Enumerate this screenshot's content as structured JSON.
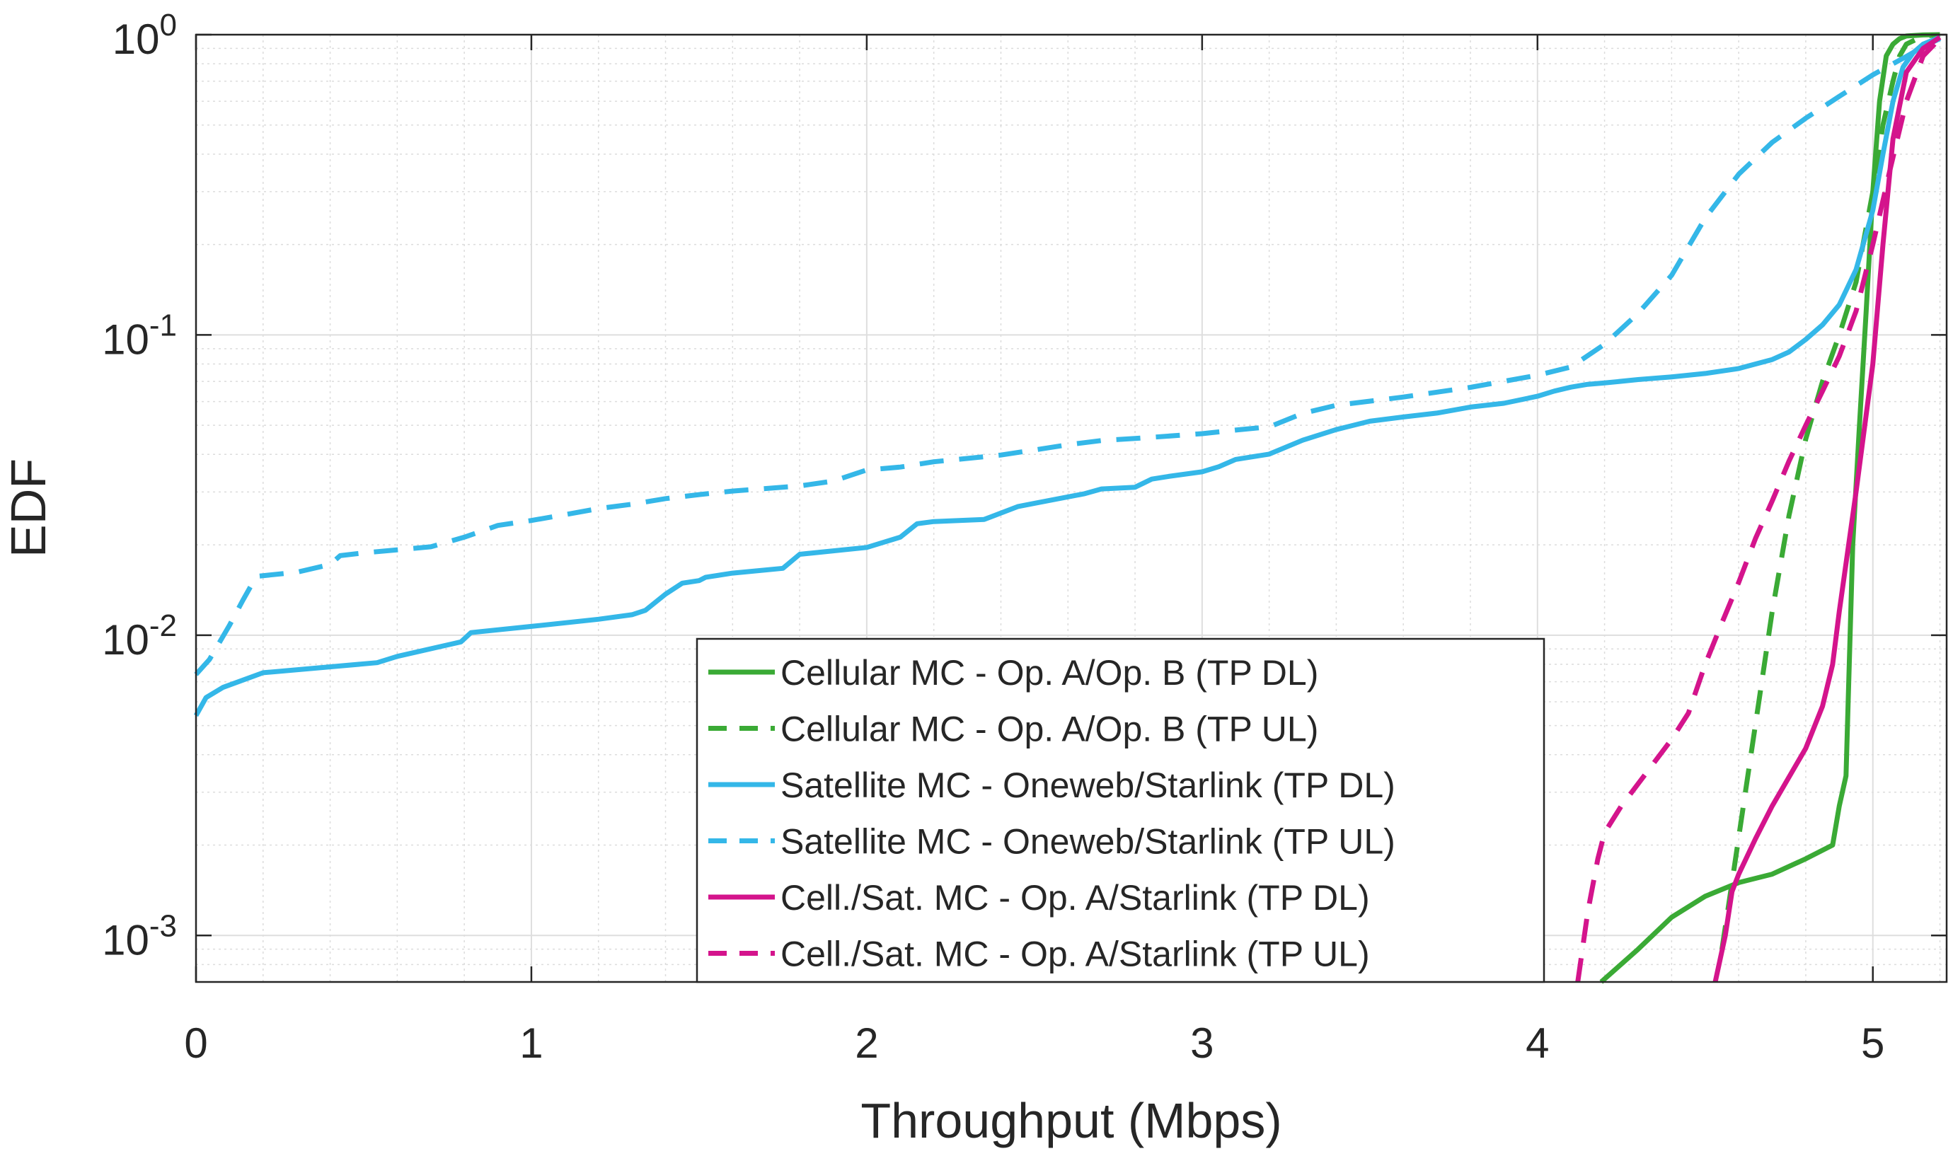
{
  "chart_data": {
    "type": "line",
    "title": "",
    "xlabel": "Throughput (Mbps)",
    "ylabel": "EDF",
    "xlim": [
      0,
      5.22
    ],
    "ylim": [
      0.0007,
      1.0
    ],
    "yscale": "log",
    "grid": true,
    "minor_grid": true,
    "legend_position": "bottom-center",
    "x_ticks": [
      {
        "value": 0,
        "label": "0"
      },
      {
        "value": 1,
        "label": "1"
      },
      {
        "value": 2,
        "label": "2"
      },
      {
        "value": 3,
        "label": "3"
      },
      {
        "value": 4,
        "label": "4"
      },
      {
        "value": 5,
        "label": "5"
      }
    ],
    "y_ticks": [
      {
        "value": 0.001,
        "base": "10",
        "exp": "-3"
      },
      {
        "value": 0.01,
        "base": "10",
        "exp": "-2"
      },
      {
        "value": 0.1,
        "base": "10",
        "exp": "-1"
      },
      {
        "value": 1.0,
        "base": "10",
        "exp": "0"
      }
    ],
    "series": [
      {
        "name": "Cellular MC - Op. A/Op. B (TP DL)",
        "color": "#3aaa35",
        "dash": "solid",
        "x": [
          4.19,
          4.3,
          4.4,
          4.5,
          4.6,
          4.7,
          4.8,
          4.88,
          4.9,
          4.92,
          4.94,
          4.96,
          4.98,
          5.0,
          5.02,
          5.04,
          5.06,
          5.08,
          5.1,
          5.15,
          5.2
        ],
        "y": [
          0.0007,
          0.0009,
          0.00115,
          0.00135,
          0.0015,
          0.0016,
          0.0018,
          0.002,
          0.0027,
          0.0034,
          0.02,
          0.05,
          0.12,
          0.3,
          0.6,
          0.85,
          0.93,
          0.97,
          0.99,
          0.998,
          1.0
        ]
      },
      {
        "name": "Cellular MC - Op. A/Op. B (TP UL)",
        "color": "#3aaa35",
        "dash": "dashed",
        "x": [
          4.55,
          4.58,
          4.62,
          4.66,
          4.7,
          4.75,
          4.8,
          4.85,
          4.9,
          4.95,
          5.0,
          5.03,
          5.06,
          5.08,
          5.1,
          5.15,
          5.2
        ],
        "y": [
          0.0009,
          0.0015,
          0.003,
          0.006,
          0.012,
          0.025,
          0.045,
          0.07,
          0.1,
          0.15,
          0.3,
          0.5,
          0.7,
          0.85,
          0.93,
          0.99,
          1.0
        ]
      },
      {
        "name": "Satellite MC - Oneweb/Starlink (TP DL)",
        "color": "#34b7e8",
        "dash": "solid",
        "x": [
          0.0,
          0.03,
          0.08,
          0.2,
          0.54,
          0.6,
          0.79,
          0.82,
          1.0,
          1.2,
          1.3,
          1.34,
          1.4,
          1.45,
          1.5,
          1.52,
          1.6,
          1.75,
          1.8,
          2.0,
          2.1,
          2.15,
          2.2,
          2.35,
          2.45,
          2.5,
          2.65,
          2.7,
          2.8,
          2.85,
          2.9,
          3.0,
          3.05,
          3.1,
          3.2,
          3.3,
          3.4,
          3.5,
          3.6,
          3.7,
          3.8,
          3.9,
          4.0,
          4.05,
          4.1,
          4.15,
          4.2,
          4.3,
          4.4,
          4.5,
          4.6,
          4.7,
          4.75,
          4.8,
          4.85,
          4.9,
          4.95,
          5.0,
          5.03,
          5.06,
          5.09,
          5.12,
          5.15,
          5.2
        ],
        "y": [
          0.0054,
          0.0062,
          0.0067,
          0.0075,
          0.0081,
          0.0085,
          0.0095,
          0.0102,
          0.0107,
          0.0113,
          0.0117,
          0.0121,
          0.0137,
          0.0149,
          0.0152,
          0.0156,
          0.0161,
          0.0167,
          0.0186,
          0.0196,
          0.0212,
          0.0235,
          0.0239,
          0.0243,
          0.0268,
          0.0275,
          0.0296,
          0.0307,
          0.0311,
          0.0331,
          0.0338,
          0.035,
          0.0364,
          0.0385,
          0.0401,
          0.0446,
          0.0484,
          0.0516,
          0.0533,
          0.0549,
          0.0575,
          0.0592,
          0.0625,
          0.065,
          0.067,
          0.0685,
          0.0692,
          0.071,
          0.0725,
          0.0744,
          0.0773,
          0.0828,
          0.0877,
          0.0966,
          0.108,
          0.126,
          0.165,
          0.26,
          0.4,
          0.6,
          0.78,
          0.87,
          0.93,
          0.98
        ]
      },
      {
        "name": "Satellite MC - Oneweb/Starlink (TP UL)",
        "color": "#34b7e8",
        "dash": "dashed",
        "x": [
          0.0,
          0.04,
          0.1,
          0.14,
          0.18,
          0.3,
          0.4,
          0.43,
          0.5,
          0.7,
          0.8,
          0.9,
          1.0,
          1.1,
          1.2,
          1.3,
          1.4,
          1.5,
          1.6,
          1.8,
          1.9,
          2.0,
          2.1,
          2.2,
          2.4,
          2.5,
          2.6,
          2.7,
          2.8,
          3.0,
          3.1,
          3.2,
          3.3,
          3.4,
          3.6,
          3.8,
          4.0,
          4.1,
          4.2,
          4.3,
          4.4,
          4.5,
          4.6,
          4.7,
          4.8,
          4.9,
          5.0,
          5.1,
          5.15,
          5.2
        ],
        "y": [
          0.0074,
          0.0083,
          0.0108,
          0.0131,
          0.0157,
          0.0162,
          0.0172,
          0.0184,
          0.0188,
          0.0197,
          0.0212,
          0.0232,
          0.0241,
          0.0252,
          0.0264,
          0.0273,
          0.0285,
          0.0294,
          0.0302,
          0.0314,
          0.0326,
          0.0355,
          0.0363,
          0.0378,
          0.0398,
          0.0414,
          0.0431,
          0.0445,
          0.0452,
          0.0469,
          0.0482,
          0.0494,
          0.0548,
          0.0583,
          0.0621,
          0.0669,
          0.0734,
          0.0782,
          0.0931,
          0.118,
          0.158,
          0.245,
          0.343,
          0.438,
          0.527,
          0.623,
          0.735,
          0.846,
          0.912,
          0.97
        ]
      },
      {
        "name": "Cell./Sat. MC - Op. A/Starlink (TP DL)",
        "color": "#d4148c",
        "dash": "solid",
        "x": [
          4.53,
          4.56,
          4.58,
          4.6,
          4.65,
          4.7,
          4.8,
          4.85,
          4.88,
          4.9,
          4.95,
          5.0,
          5.03,
          5.06,
          5.1,
          5.15,
          5.2
        ],
        "y": [
          0.0007,
          0.001,
          0.0014,
          0.0016,
          0.0021,
          0.0027,
          0.0042,
          0.0058,
          0.008,
          0.012,
          0.03,
          0.08,
          0.2,
          0.45,
          0.75,
          0.9,
          0.98
        ]
      },
      {
        "name": "Cell./Sat. MC - Op. A/Starlink (TP UL)",
        "color": "#d4148c",
        "dash": "dashed",
        "x": [
          4.12,
          4.15,
          4.18,
          4.2,
          4.25,
          4.3,
          4.4,
          4.45,
          4.5,
          4.55,
          4.6,
          4.65,
          4.7,
          4.75,
          4.8,
          4.85,
          4.9,
          4.95,
          5.0,
          5.05,
          5.1,
          5.15,
          5.2
        ],
        "y": [
          0.0007,
          0.0012,
          0.0018,
          0.0022,
          0.0027,
          0.0032,
          0.0045,
          0.0055,
          0.008,
          0.011,
          0.015,
          0.021,
          0.028,
          0.038,
          0.05,
          0.065,
          0.085,
          0.12,
          0.2,
          0.35,
          0.6,
          0.85,
          0.97
        ]
      }
    ]
  }
}
